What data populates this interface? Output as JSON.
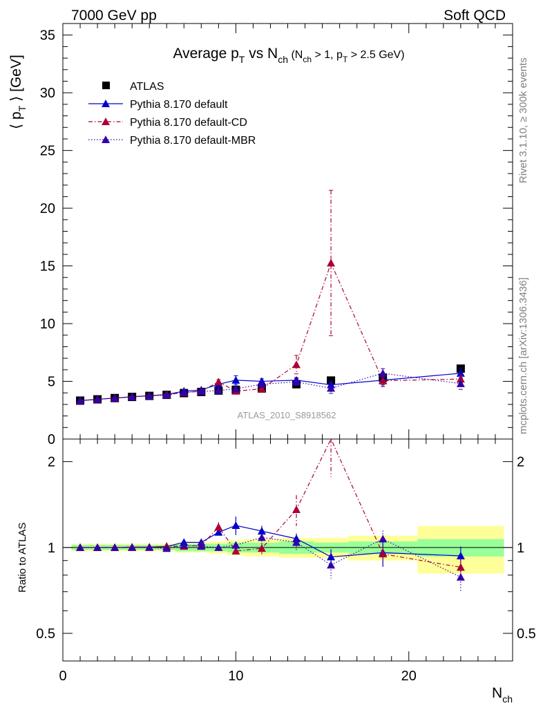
{
  "header": {
    "left": "7000 GeV pp",
    "right": "Soft QCD"
  },
  "side_text": {
    "top": "Rivet 3.1.10, ≥ 300k events",
    "bottom": "mcplots.cern.ch [arXiv:1306.3436]"
  },
  "chart_data": {
    "type": "scatter",
    "title": "Average p_T vs N_ch (N_ch > 1, p_T > 2.5 GeV)",
    "watermark": "ATLAS_2010_S8918562",
    "xlabel": "N_ch",
    "ylabel": "⟨ p_T ⟩ [GeV]",
    "ratio_ylabel": "Ratio to ATLAS",
    "xlim": [
      0,
      26
    ],
    "ylim": [
      0,
      36
    ],
    "ratio_ylim": [
      0.4,
      2.4
    ],
    "ratio_scale": "log",
    "xticks": [
      0,
      10,
      20
    ],
    "yticks": [
      0,
      5,
      10,
      15,
      20,
      25,
      30,
      35
    ],
    "ratio_yticks": [
      0.5,
      1,
      2
    ],
    "legend_position": "top-left",
    "bins": [
      [
        0.5,
        1.5
      ],
      [
        1.5,
        2.5
      ],
      [
        2.5,
        3.5
      ],
      [
        3.5,
        4.5
      ],
      [
        4.5,
        5.5
      ],
      [
        5.5,
        6.5
      ],
      [
        6.5,
        7.5
      ],
      [
        7.5,
        8.5
      ],
      [
        8.5,
        9.5
      ],
      [
        9.5,
        10.5
      ],
      [
        10.5,
        12.5
      ],
      [
        12.5,
        14.5
      ],
      [
        14.5,
        16.5
      ],
      [
        16.5,
        20.5
      ],
      [
        20.5,
        25.5
      ]
    ],
    "x": [
      1,
      2,
      3,
      4,
      5,
      6,
      7,
      8,
      9,
      10,
      11.5,
      13.5,
      15.5,
      18.5,
      23
    ],
    "series": [
      {
        "name": "ATLAS",
        "color": "#000000",
        "marker": "square",
        "line": "none",
        "values": [
          3.33,
          3.44,
          3.55,
          3.65,
          3.74,
          3.83,
          3.98,
          4.08,
          4.2,
          4.27,
          4.38,
          4.75,
          5.07,
          5.32,
          6.1
        ],
        "band_stat": [
          0.02,
          0.02,
          0.02,
          0.02,
          0.02,
          0.02,
          0.03,
          0.03,
          0.03,
          0.04,
          0.04,
          0.05,
          0.04,
          0.05,
          0.07
        ],
        "band_total": [
          0.03,
          0.03,
          0.03,
          0.03,
          0.03,
          0.03,
          0.04,
          0.04,
          0.05,
          0.06,
          0.07,
          0.08,
          0.08,
          0.1,
          0.19
        ]
      },
      {
        "name": "Pythia 8.170 default",
        "color": "#0000cc",
        "marker": "triangle",
        "line": "solid",
        "values": [
          3.33,
          3.44,
          3.55,
          3.66,
          3.75,
          3.86,
          4.15,
          4.25,
          4.75,
          5.1,
          5.0,
          5.1,
          4.7,
          5.1,
          5.7
        ],
        "errors": [
          0.02,
          0.02,
          0.02,
          0.03,
          0.03,
          0.04,
          0.05,
          0.06,
          0.12,
          0.38,
          0.22,
          0.22,
          0.3,
          0.55,
          0.45
        ]
      },
      {
        "name": "Pythia 8.170 default-CD",
        "color": "#aa0033",
        "marker": "triangle",
        "line": "dashdot",
        "values": [
          3.33,
          3.44,
          3.55,
          3.66,
          3.75,
          3.87,
          4.02,
          4.15,
          4.95,
          4.15,
          4.35,
          6.45,
          15.25,
          5.05,
          5.2
        ],
        "errors": [
          0.02,
          0.02,
          0.02,
          0.03,
          0.04,
          0.04,
          0.05,
          0.06,
          0.2,
          0.15,
          0.2,
          0.8,
          6.3,
          0.35,
          0.35
        ]
      },
      {
        "name": "Pythia 8.170 default-MBR",
        "color": "#3300aa",
        "marker": "triangle",
        "line": "dotted",
        "values": [
          3.33,
          3.44,
          3.55,
          3.65,
          3.74,
          3.8,
          4.05,
          4.12,
          4.2,
          4.35,
          4.75,
          4.95,
          4.4,
          5.7,
          4.8
        ],
        "errors": [
          0.02,
          0.02,
          0.02,
          0.03,
          0.03,
          0.04,
          0.05,
          0.05,
          0.1,
          0.12,
          0.2,
          0.3,
          0.45,
          0.4,
          0.5
        ]
      }
    ]
  }
}
